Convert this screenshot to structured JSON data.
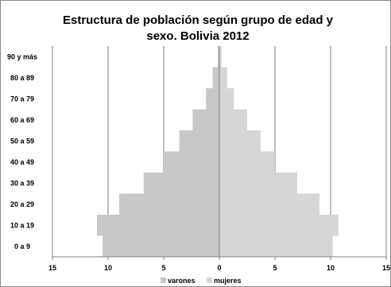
{
  "chart_data": {
    "type": "bar",
    "orientation": "horizontal",
    "title_lines": [
      "Estructura de población según grupo de edad y",
      "sexo. Bolivia 2012"
    ],
    "categories": [
      "0 a 9",
      "10 a 19",
      "20 a 29",
      "30 a 39",
      "40 a 49",
      "50 a 59",
      "60 a 69",
      "70 a 79",
      "80 a 89",
      "90 y más"
    ],
    "series": [
      {
        "name": "varones",
        "color": "#c8c8c8",
        "values": [
          10.5,
          11.0,
          9.0,
          6.8,
          5.0,
          3.6,
          2.4,
          1.2,
          0.6,
          0.15
        ]
      },
      {
        "name": "mujeres",
        "color": "#d6d6d6",
        "values": [
          10.2,
          10.7,
          9.0,
          7.0,
          5.0,
          3.7,
          2.5,
          1.3,
          0.7,
          0.2
        ]
      }
    ],
    "xlim": [
      -15,
      15
    ],
    "xticks": [
      -15,
      -10,
      -5,
      0,
      5,
      10,
      15
    ],
    "xtick_labels": [
      "15",
      "10",
      "5",
      "0",
      "5",
      "10",
      "15"
    ],
    "grid": "vertical",
    "legend_position": "bottom"
  }
}
